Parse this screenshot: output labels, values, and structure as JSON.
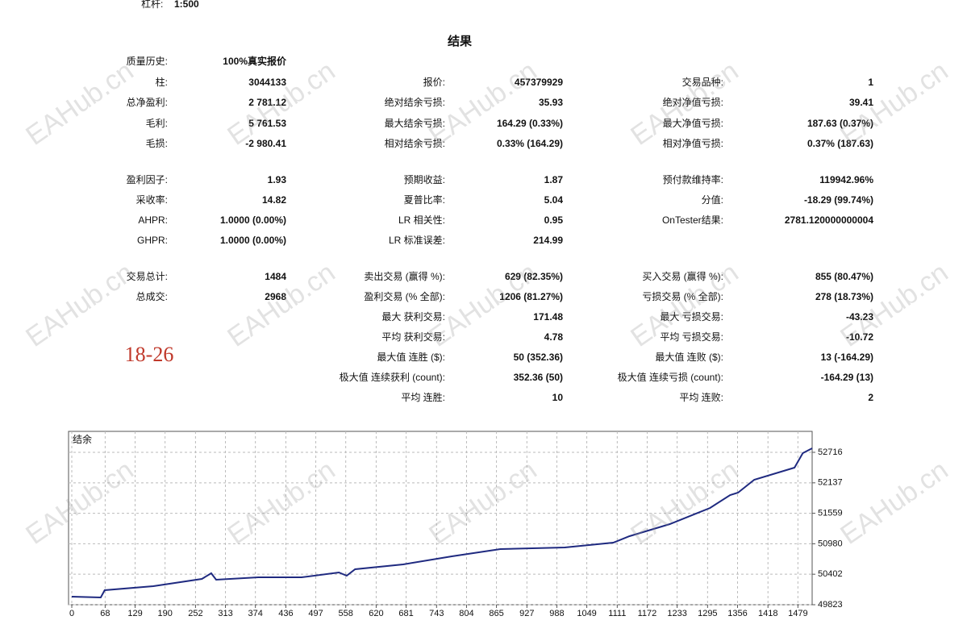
{
  "header": {
    "leverage_label": "杠杆:",
    "leverage": "1:500"
  },
  "title": "结果",
  "stats": [
    [
      {
        "label": "质量历史:",
        "value": "100%真实报价"
      },
      null,
      null
    ],
    [
      {
        "label": "柱:",
        "value": "3044133"
      },
      {
        "label": "报价:",
        "value": "457379929"
      },
      {
        "label": "交易品种:",
        "value": "1"
      }
    ],
    [
      {
        "label": "总净盈利:",
        "value": "2 781.12"
      },
      {
        "label": "绝对结余亏损:",
        "value": "35.93"
      },
      {
        "label": "绝对净值亏损:",
        "value": "39.41"
      }
    ],
    [
      {
        "label": "毛利:",
        "value": "5 761.53"
      },
      {
        "label": "最大结余亏损:",
        "value": "164.29 (0.33%)"
      },
      {
        "label": "最大净值亏损:",
        "value": "187.63 (0.37%)"
      }
    ],
    [
      {
        "label": "毛损:",
        "value": "-2 980.41"
      },
      {
        "label": "相对结余亏损:",
        "value": "0.33% (164.29)"
      },
      {
        "label": "相对净值亏损:",
        "value": "0.37% (187.63)"
      }
    ],
    [
      {
        "label": "盈利因子:",
        "value": "1.93"
      },
      {
        "label": "预期收益:",
        "value": "1.87"
      },
      {
        "label": "预付款维持率:",
        "value": "119942.96%"
      }
    ],
    [
      {
        "label": "采收率:",
        "value": "14.82"
      },
      {
        "label": "夏普比率:",
        "value": "5.04"
      },
      {
        "label": "分值:",
        "value": "-18.29 (99.74%)"
      }
    ],
    [
      {
        "label": "AHPR:",
        "value": "1.0000 (0.00%)"
      },
      {
        "label": "LR 相关性:",
        "value": "0.95"
      },
      {
        "label": "OnTester结果:",
        "value": "2781.120000000004"
      }
    ],
    [
      {
        "label": "GHPR:",
        "value": "1.0000 (0.00%)"
      },
      {
        "label": "LR 标准误差:",
        "value": "214.99"
      },
      null
    ],
    [
      {
        "label": "交易总计:",
        "value": "1484"
      },
      {
        "label": "卖出交易 (赢得 %):",
        "value": "629 (82.35%)"
      },
      {
        "label": "买入交易 (赢得 %):",
        "value": "855 (80.47%)"
      }
    ],
    [
      {
        "label": "总成交:",
        "value": "2968"
      },
      {
        "label": "盈利交易 (% 全部):",
        "value": "1206 (81.27%)"
      },
      {
        "label": "亏损交易 (% 全部):",
        "value": "278 (18.73%)"
      }
    ],
    [
      null,
      {
        "label": "最大 获利交易:",
        "value": "171.48"
      },
      {
        "label": "最大 亏损交易:",
        "value": "-43.23"
      }
    ],
    [
      null,
      {
        "label": "平均 获利交易:",
        "value": "4.78"
      },
      {
        "label": "平均 亏损交易:",
        "value": "-10.72"
      }
    ],
    [
      null,
      {
        "label": "最大值 连胜 ($):",
        "value": "50 (352.36)"
      },
      {
        "label": "最大值 连败 ($):",
        "value": "13 (-164.29)"
      }
    ],
    [
      null,
      {
        "label": "极大值 连续获利 (count):",
        "value": "352.36 (50)"
      },
      {
        "label": "极大值 连续亏损 (count):",
        "value": "-164.29 (13)"
      }
    ],
    [
      null,
      {
        "label": "平均 连胜:",
        "value": "10"
      },
      {
        "label": "平均 连败:",
        "value": "2"
      }
    ]
  ],
  "annotation": "18-26",
  "watermark": "EAHub.cn",
  "chart_data": {
    "type": "line",
    "title": "结余",
    "x": [
      0,
      59,
      67,
      166,
      265,
      284,
      294,
      380,
      468,
      544,
      560,
      577,
      675,
      774,
      873,
      1004,
      1103,
      1136,
      1218,
      1300,
      1341,
      1357,
      1390,
      1472,
      1489,
      1508
    ],
    "series": [
      {
        "color": "#1f2a80",
        "values": [
          49976,
          49961,
          50099,
          50175,
          50313,
          50420,
          50298,
          50343,
          50343,
          50435,
          50374,
          50497,
          50588,
          50741,
          50879,
          50910,
          51002,
          51124,
          51354,
          51660,
          51905,
          51951,
          52196,
          52425,
          52701,
          52793
        ]
      }
    ],
    "xlim": [
      0,
      1508
    ],
    "ylim": [
      49823,
      53114
    ],
    "xticks": [
      0,
      68,
      129,
      190,
      252,
      313,
      374,
      436,
      497,
      558,
      620,
      681,
      743,
      804,
      865,
      927,
      988,
      1049,
      1111,
      1172,
      1233,
      1295,
      1356,
      1418,
      1479
    ],
    "yticks": [
      49823,
      50402,
      50980,
      51559,
      52137,
      52716
    ],
    "grid": true
  }
}
